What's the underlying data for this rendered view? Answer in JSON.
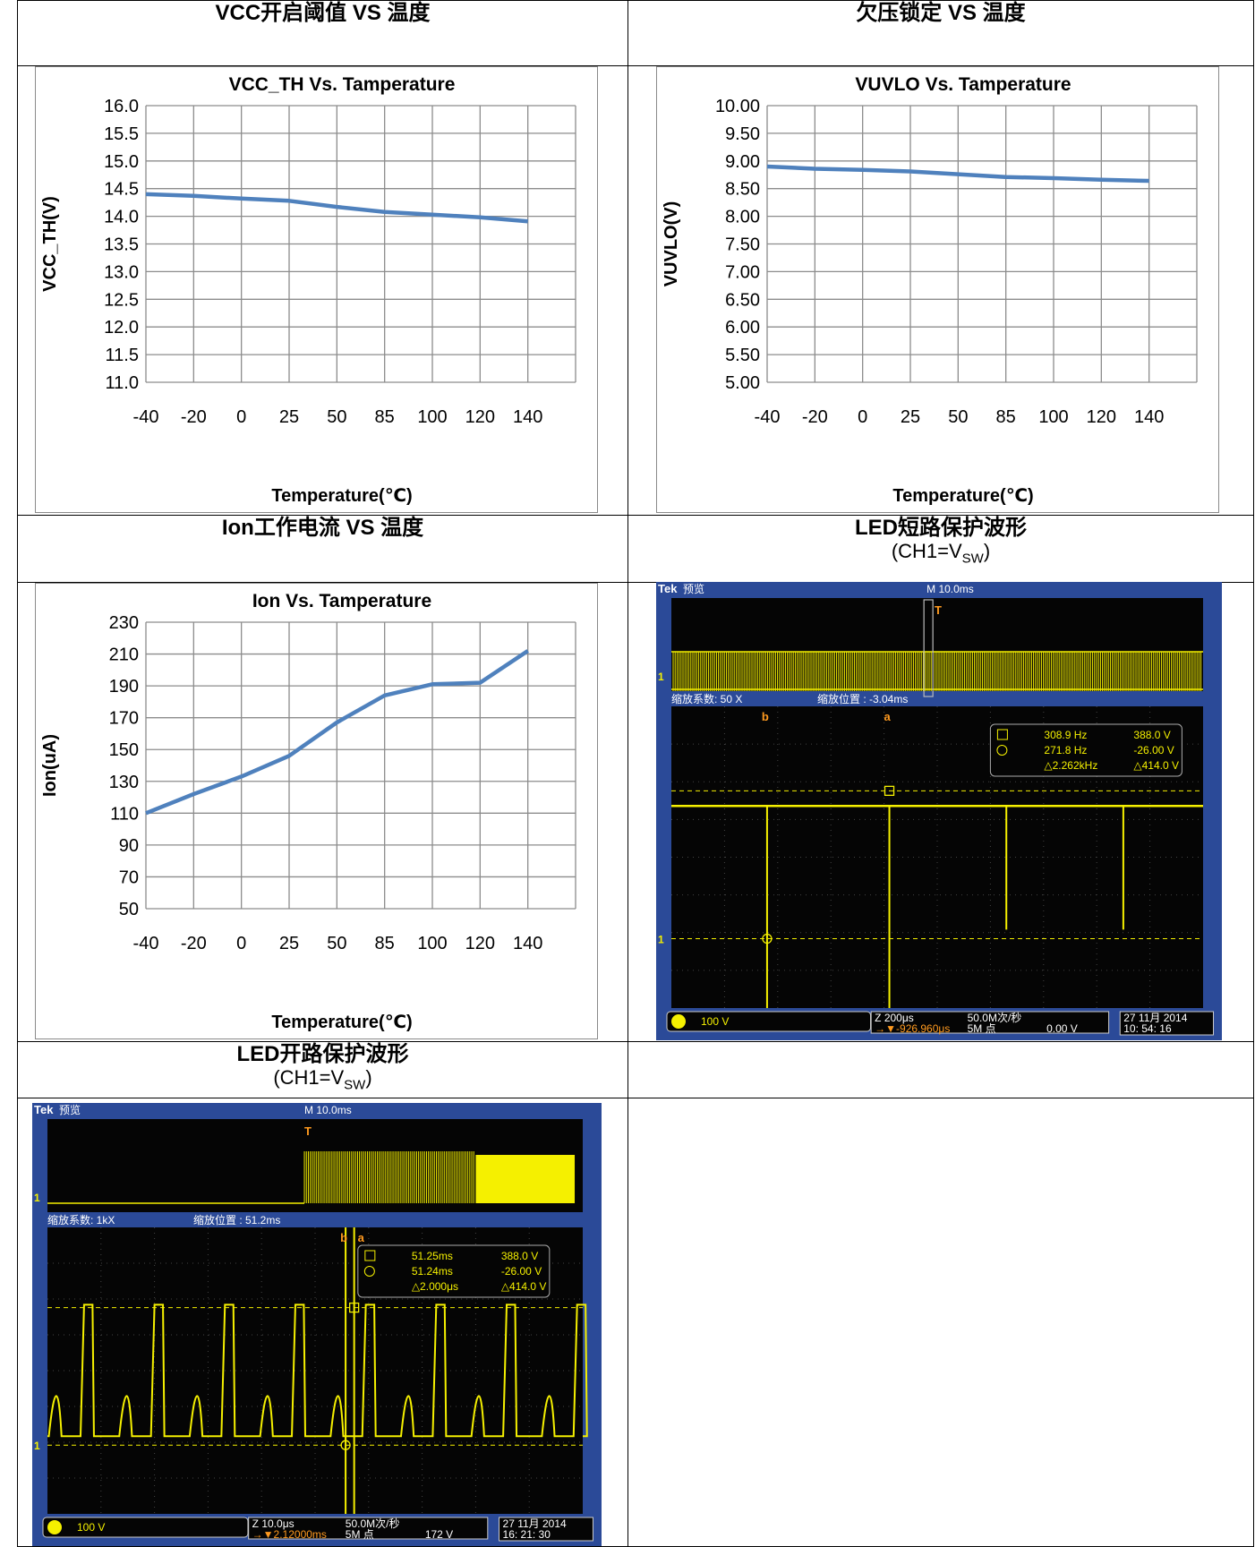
{
  "cells": {
    "vcc": {
      "title": "VCC开启阈值  VS  温度"
    },
    "uvlo": {
      "title": "欠压锁定  VS  温度"
    },
    "ion": {
      "title": "Ion工作电流  VS  温度"
    },
    "short": {
      "title": "LED短路保护波形",
      "sub_prefix": "(CH1=V",
      "sub_sub": "SW",
      "sub_suffix": ")"
    },
    "open": {
      "title": "LED开路保护波形",
      "sub_prefix": "(CH1=V",
      "sub_sub": "SW",
      "sub_suffix": ")"
    }
  },
  "chart_data": [
    {
      "type": "line",
      "title": "VCC_TH Vs. Tamperature",
      "xlabel": "Temperature(℃)",
      "ylabel": "VCC_TH(V)",
      "categories": [
        "-40",
        "-20",
        "0",
        "25",
        "50",
        "85",
        "100",
        "120",
        "140"
      ],
      "series": [
        {
          "values": [
            14.4,
            14.37,
            14.32,
            14.28,
            14.17,
            14.08,
            14.03,
            13.98,
            13.91
          ]
        }
      ],
      "yticks": [
        "16.0",
        "15.5",
        "15.0",
        "14.5",
        "14.0",
        "13.5",
        "13.0",
        "12.5",
        "12.0",
        "11.5",
        "11.0"
      ],
      "ylim": [
        11.0,
        16.0
      ],
      "grid": true,
      "color": "#4f81bd"
    },
    {
      "type": "line",
      "title": "VUVLO Vs. Tamperature",
      "xlabel": "Temperature(℃)",
      "ylabel": "VUVLO(V)",
      "categories": [
        "-40",
        "-20",
        "0",
        "25",
        "50",
        "85",
        "100",
        "120",
        "140"
      ],
      "series": [
        {
          "values": [
            8.9,
            8.86,
            8.84,
            8.81,
            8.76,
            8.71,
            8.69,
            8.66,
            8.64
          ]
        }
      ],
      "yticks": [
        "10.00",
        "9.50",
        "9.00",
        "8.50",
        "8.00",
        "7.50",
        "7.00",
        "6.50",
        "6.00",
        "5.50",
        "5.00"
      ],
      "ylim": [
        5.0,
        10.0
      ],
      "grid": true,
      "color": "#4f81bd"
    },
    {
      "type": "line",
      "title": "Ion Vs. Tamperature",
      "xlabel": "Temperature(℃)",
      "ylabel": "Ion(uA)",
      "categories": [
        "-40",
        "-20",
        "0",
        "25",
        "50",
        "85",
        "100",
        "120",
        "140"
      ],
      "series": [
        {
          "values": [
            110,
            122,
            133,
            146,
            167,
            184,
            191,
            192,
            212
          ]
        }
      ],
      "yticks": [
        "230",
        "210",
        "190",
        "170",
        "150",
        "130",
        "110",
        "90",
        "70",
        "50"
      ],
      "ylim": [
        50,
        230
      ],
      "grid": true,
      "color": "#4f81bd"
    }
  ],
  "scopes": {
    "short": {
      "brand": "Tek",
      "mode": "预览",
      "timebase": "M 10.0ms",
      "zoom_factor": "缩放系数: 50 X",
      "zoom_pos": "缩放位置 : -3.04ms",
      "readout": {
        "a_freq": "308.9 Hz",
        "a_volt": "388.0 V",
        "b_freq": "271.8 Hz",
        "b_volt": "-26.00 V",
        "d_freq": "△2.262kHz",
        "d_volt": "△414.0 V"
      },
      "ch_scale": "100 V",
      "zoom_time": "Z 200μs",
      "sample_rate": "50.0M次/秒",
      "trig_pos": "→▼-926.960μs",
      "points": "5M 点",
      "trig_level": "0.00 V",
      "date": "27 11月  2014",
      "time": "10: 54: 16"
    },
    "open": {
      "brand": "Tek",
      "mode": "预览",
      "timebase": "M 10.0ms",
      "zoom_factor": "缩放系数: 1kX",
      "zoom_pos": "缩放位置 : 51.2ms",
      "readout": {
        "a_freq": "51.25ms",
        "a_volt": "388.0 V",
        "b_freq": "51.24ms",
        "b_volt": "-26.00 V",
        "d_freq": "△2.000μs",
        "d_volt": "△414.0 V"
      },
      "ch_scale": "100 V",
      "zoom_time": "Z 10.0μs",
      "sample_rate": "50.0M次/秒",
      "trig_pos": "→▼2.12000ms",
      "points": "5M 点",
      "trig_level": "172 V",
      "date": "27 11月  2014",
      "time": "16: 21: 30"
    }
  }
}
